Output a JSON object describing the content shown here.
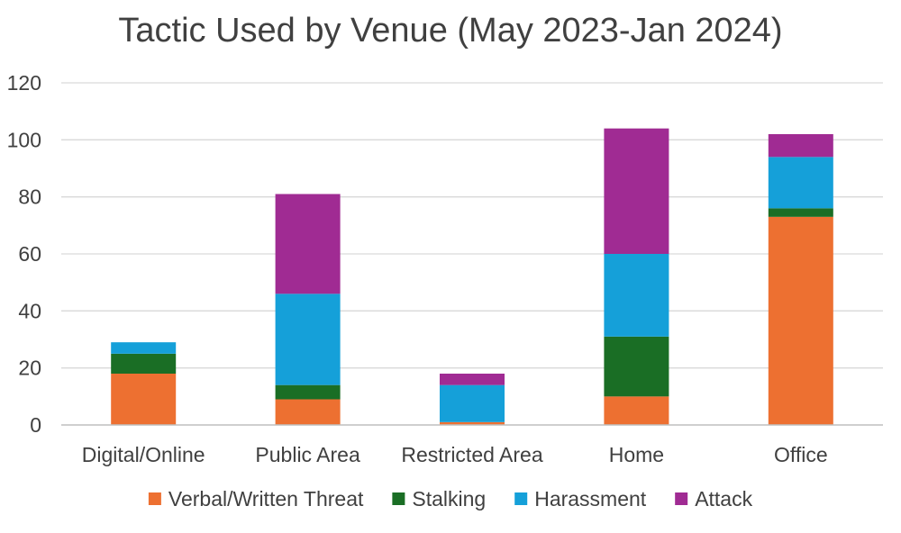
{
  "chart_data": {
    "type": "bar",
    "stacked": true,
    "title": "Tactic Used by Venue (May 2023-Jan 2024)",
    "xlabel": "",
    "ylabel": "",
    "ylim": [
      0,
      120
    ],
    "yticks": [
      0,
      20,
      40,
      60,
      80,
      100,
      120
    ],
    "grid": true,
    "legend_position": "bottom",
    "categories": [
      "Digital/Online",
      "Public Area",
      "Restricted Area",
      "Home",
      "Office"
    ],
    "series": [
      {
        "name": "Verbal/Written Threat",
        "color": "#ed7031",
        "values": [
          18,
          9,
          1,
          10,
          73
        ]
      },
      {
        "name": "Stalking",
        "color": "#1a6e25",
        "values": [
          7,
          5,
          0,
          21,
          3
        ]
      },
      {
        "name": "Harassment",
        "color": "#15a0d9",
        "values": [
          4,
          32,
          13,
          29,
          18
        ]
      },
      {
        "name": "Attack",
        "color": "#a02b93",
        "values": [
          0,
          35,
          4,
          44,
          8
        ]
      }
    ]
  }
}
